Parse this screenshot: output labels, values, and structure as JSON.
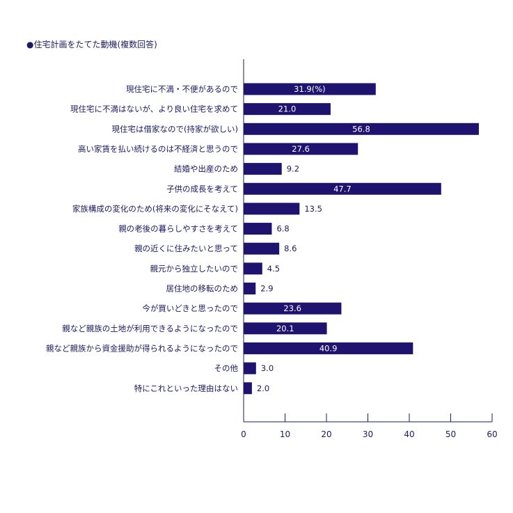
{
  "chart_data": {
    "type": "bar",
    "orientation": "horizontal",
    "title": "●住宅計画をたてた動機(複数回答)",
    "xlabel": "",
    "ylabel": "",
    "xlim": [
      0,
      60
    ],
    "xticks": [
      "0",
      "10",
      "20",
      "30",
      "40",
      "50",
      "60"
    ],
    "grid": false,
    "legend": "none",
    "bar_color": "#1e1470",
    "categories": [
      "現住宅に不満・不便があるので",
      "現住宅に不満はないが、より良い住宅を求めて",
      "現住宅は借家なので(持家が欲しい)",
      "高い家賃を払い続けるのは不経済と思うので",
      "結婚や出産のため",
      "子供の成長を考えて",
      "家族構成の変化のため(将来の変化にそなえて)",
      "親の老後の暮らしやすさを考えて",
      "親の近くに住みたいと思って",
      "親元から独立したいので",
      "居住地の移転のため",
      "今が買いどきと思ったので",
      "親など親族の土地が利用できるようになったので",
      "親など親族から資金援助が得られるようになったので",
      "その他",
      "特にこれといった理由はない"
    ],
    "values": [
      31.9,
      21.0,
      56.8,
      27.6,
      9.2,
      47.7,
      13.5,
      6.8,
      8.6,
      4.5,
      2.9,
      23.6,
      20.1,
      40.9,
      3.0,
      2.0
    ],
    "value_labels": [
      "31.9(%)",
      "21.0",
      "56.8",
      "27.6",
      "9.2",
      "47.7",
      "13.5",
      "6.8",
      "8.6",
      "4.5",
      "2.9",
      "23.6",
      "20.1",
      "40.9",
      "3.0",
      "2.0"
    ]
  }
}
